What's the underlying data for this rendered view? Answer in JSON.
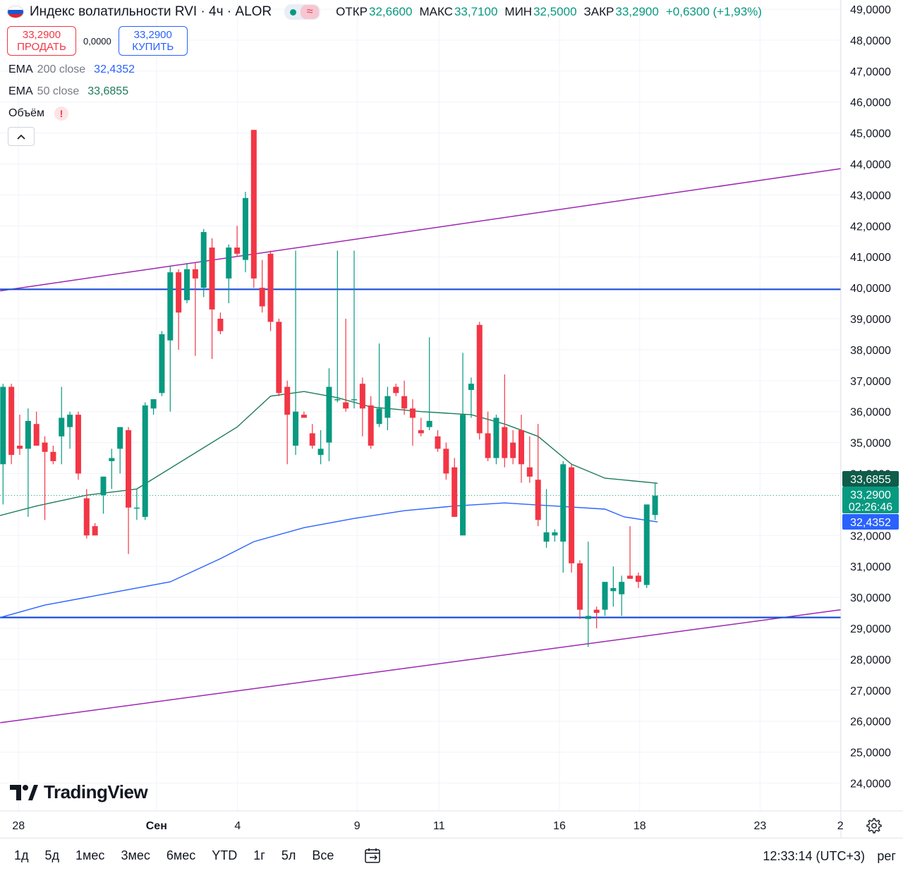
{
  "header": {
    "title": "Индекс волатильности RVI · 4ч · ALOR",
    "status_icon": "wave-icon",
    "ohlc": [
      {
        "label": "ОТКР",
        "value": "32,6600"
      },
      {
        "label": "МАКС",
        "value": "33,7100"
      },
      {
        "label": "МИН",
        "value": "32,5000"
      },
      {
        "label": "ЗАКР",
        "value": "33,2900"
      }
    ],
    "change": "+0,6300 (+1,93%)"
  },
  "trade": {
    "sell_price": "33,2900",
    "sell_label": "ПРОДАТЬ",
    "spread": "0,0000",
    "buy_price": "33,2900",
    "buy_label": "КУПИТЬ"
  },
  "indicators": [
    {
      "name": "EMA",
      "params": "200 close",
      "value": "32,4352",
      "color": "#2962ff"
    },
    {
      "name": "EMA",
      "params": "50 close",
      "value": "33,6855",
      "color": "#1e7a5a"
    },
    {
      "name": "Объём",
      "params": "",
      "value": "",
      "warning": "!"
    }
  ],
  "colors": {
    "up": "#089981",
    "down": "#f23645",
    "ema200": "#2962ff",
    "ema50": "#1e7a5a",
    "channel": "#9c27b0",
    "hline": "#1a4fd6",
    "grid": "#f0f3fa"
  },
  "price_badges": [
    {
      "price": 33.6855,
      "text": "33,6855",
      "bg": "#0e5c4a"
    },
    {
      "price": 33.29,
      "text": "33,2900",
      "sub": "02:26:46",
      "bg": "#089981"
    },
    {
      "price": 32.4352,
      "text": "32,4352",
      "bg": "#2962ff"
    }
  ],
  "chart_data": {
    "type": "candlestick",
    "y_ticks": [
      "49,0000",
      "48,0000",
      "47,0000",
      "46,0000",
      "45,0000",
      "44,0000",
      "43,0000",
      "42,0000",
      "41,0000",
      "40,0000",
      "39,0000",
      "38,0000",
      "37,0000",
      "36,0000",
      "35,0000",
      "34,0000",
      "32,0000",
      "31,0000",
      "30,0000",
      "29,0000",
      "28,0000",
      "27,0000",
      "26,0000",
      "25,0000",
      "24,0000"
    ],
    "y_tick_values": [
      49,
      48,
      47,
      46,
      45,
      44,
      43,
      42,
      41,
      40,
      39,
      38,
      37,
      36,
      35,
      34,
      32,
      31,
      30,
      29,
      28,
      27,
      26,
      25,
      24
    ],
    "x_labels": [
      {
        "text": "28",
        "bar": 0
      },
      {
        "text": "Сен",
        "bar": 16.5
      },
      {
        "text": "4",
        "bar": 26.2
      },
      {
        "text": "9",
        "bar": 40.5
      },
      {
        "text": "11",
        "bar": 50.3
      },
      {
        "text": "16",
        "bar": 64.7
      },
      {
        "text": "18",
        "bar": 74.3
      },
      {
        "text": "23",
        "bar": 88.7
      },
      {
        "text": "2",
        "bar": 98.3
      }
    ],
    "y_range": [
      23.3,
      49.2
    ],
    "horizontal_levels": [
      39.95,
      29.35
    ],
    "channel_lines": [
      {
        "from": [
          0,
          39.9
        ],
        "to": [
          99,
          43.85
        ]
      },
      {
        "from": [
          0,
          25.95
        ],
        "to": [
          99,
          29.6
        ]
      }
    ],
    "candles": [
      {
        "o": 34.3,
        "h": 36.9,
        "l": 33.0,
        "c": 36.8
      },
      {
        "o": 36.8,
        "h": 36.9,
        "l": 34.3,
        "c": 34.6
      },
      {
        "o": 34.9,
        "h": 35.9,
        "l": 34.6,
        "c": 34.8
      },
      {
        "o": 34.8,
        "h": 36.1,
        "l": 32.6,
        "c": 35.7
      },
      {
        "o": 35.6,
        "h": 36.0,
        "l": 34.9,
        "c": 34.9
      },
      {
        "o": 35.0,
        "h": 35.2,
        "l": 32.5,
        "c": 34.7
      },
      {
        "o": 34.7,
        "h": 34.9,
        "l": 34.3,
        "c": 34.4
      },
      {
        "o": 35.2,
        "h": 36.8,
        "l": 34.3,
        "c": 35.8
      },
      {
        "o": 35.5,
        "h": 36.0,
        "l": 34.8,
        "c": 35.9
      },
      {
        "o": 35.9,
        "h": 36.0,
        "l": 33.8,
        "c": 34.0
      },
      {
        "o": 33.2,
        "h": 33.5,
        "l": 31.9,
        "c": 32.0
      },
      {
        "o": 32.3,
        "h": 32.4,
        "l": 32.0,
        "c": 32.0
      },
      {
        "o": 33.3,
        "h": 33.9,
        "l": 32.7,
        "c": 33.9
      },
      {
        "o": 34.4,
        "h": 34.8,
        "l": 33.5,
        "c": 34.5
      },
      {
        "o": 34.8,
        "h": 35.5,
        "l": 34.0,
        "c": 35.5
      },
      {
        "o": 35.4,
        "h": 35.5,
        "l": 31.4,
        "c": 32.9
      },
      {
        "o": 32.9,
        "h": 33.5,
        "l": 32.5,
        "c": 32.9
      },
      {
        "o": 32.6,
        "h": 36.3,
        "l": 32.5,
        "c": 36.2
      },
      {
        "o": 36.1,
        "h": 36.4,
        "l": 35.9,
        "c": 36.4
      },
      {
        "o": 36.6,
        "h": 38.6,
        "l": 36.5,
        "c": 38.5
      },
      {
        "o": 38.3,
        "h": 40.7,
        "l": 36.0,
        "c": 40.5
      },
      {
        "o": 40.5,
        "h": 40.6,
        "l": 38.0,
        "c": 39.2
      },
      {
        "o": 39.6,
        "h": 40.8,
        "l": 39.5,
        "c": 40.6
      },
      {
        "o": 40.6,
        "h": 40.8,
        "l": 37.8,
        "c": 40.3
      },
      {
        "o": 40.0,
        "h": 41.9,
        "l": 39.7,
        "c": 41.8
      },
      {
        "o": 41.3,
        "h": 41.6,
        "l": 37.7,
        "c": 39.3
      },
      {
        "o": 39.0,
        "h": 39.2,
        "l": 38.5,
        "c": 38.6
      },
      {
        "o": 40.3,
        "h": 41.4,
        "l": 39.5,
        "c": 41.3
      },
      {
        "o": 41.3,
        "h": 42.0,
        "l": 41.0,
        "c": 41.1
      },
      {
        "o": 40.9,
        "h": 43.1,
        "l": 40.5,
        "c": 42.9
      },
      {
        "o": 45.1,
        "h": 45.1,
        "l": 40.0,
        "c": 40.3
      },
      {
        "o": 40.0,
        "h": 40.9,
        "l": 39.2,
        "c": 39.4
      },
      {
        "o": 41.1,
        "h": 41.2,
        "l": 38.6,
        "c": 38.9
      },
      {
        "o": 38.9,
        "h": 39.0,
        "l": 36.5,
        "c": 36.6
      },
      {
        "o": 36.8,
        "h": 37.0,
        "l": 34.3,
        "c": 35.9
      },
      {
        "o": 34.9,
        "h": 41.2,
        "l": 34.6,
        "c": 36.0
      },
      {
        "o": 35.9,
        "h": 36.0,
        "l": 35.8,
        "c": 35.8
      },
      {
        "o": 35.3,
        "h": 35.6,
        "l": 34.8,
        "c": 34.9
      },
      {
        "o": 34.6,
        "h": 35.4,
        "l": 34.3,
        "c": 34.8
      },
      {
        "o": 35.0,
        "h": 37.4,
        "l": 34.4,
        "c": 36.8
      },
      {
        "o": 36.4,
        "h": 41.2,
        "l": 36.3,
        "c": 36.4
      },
      {
        "o": 36.3,
        "h": 39.0,
        "l": 36.0,
        "c": 36.1
      },
      {
        "o": 36.4,
        "h": 41.2,
        "l": 36.1,
        "c": 36.4
      },
      {
        "o": 36.9,
        "h": 37.1,
        "l": 35.2,
        "c": 36.1
      },
      {
        "o": 36.2,
        "h": 36.5,
        "l": 34.8,
        "c": 34.9
      },
      {
        "o": 35.6,
        "h": 38.2,
        "l": 35.5,
        "c": 36.1
      },
      {
        "o": 35.8,
        "h": 36.8,
        "l": 35.4,
        "c": 36.5
      },
      {
        "o": 36.8,
        "h": 36.9,
        "l": 36.5,
        "c": 36.6
      },
      {
        "o": 36.5,
        "h": 37.0,
        "l": 35.9,
        "c": 36.1
      },
      {
        "o": 36.1,
        "h": 36.4,
        "l": 34.9,
        "c": 35.8
      },
      {
        "o": 35.4,
        "h": 35.8,
        "l": 35.2,
        "c": 35.3
      },
      {
        "o": 35.5,
        "h": 38.4,
        "l": 35.4,
        "c": 35.7
      },
      {
        "o": 35.2,
        "h": 35.4,
        "l": 34.7,
        "c": 34.8
      },
      {
        "o": 34.8,
        "h": 35.0,
        "l": 33.8,
        "c": 34.0
      },
      {
        "o": 34.2,
        "h": 34.5,
        "l": 32.6,
        "c": 32.6
      },
      {
        "o": 32.0,
        "h": 37.9,
        "l": 32.0,
        "c": 35.9
      },
      {
        "o": 36.7,
        "h": 37.1,
        "l": 35.8,
        "c": 36.9
      },
      {
        "o": 38.8,
        "h": 38.9,
        "l": 35.1,
        "c": 35.3
      },
      {
        "o": 35.3,
        "h": 36.0,
        "l": 34.4,
        "c": 34.5
      },
      {
        "o": 34.5,
        "h": 35.9,
        "l": 34.3,
        "c": 35.8
      },
      {
        "o": 35.5,
        "h": 37.2,
        "l": 34.2,
        "c": 34.5
      },
      {
        "o": 35.0,
        "h": 35.4,
        "l": 34.3,
        "c": 34.5
      },
      {
        "o": 35.4,
        "h": 35.9,
        "l": 33.7,
        "c": 34.3
      },
      {
        "o": 34.2,
        "h": 35.2,
        "l": 33.7,
        "c": 33.9
      },
      {
        "o": 33.8,
        "h": 35.6,
        "l": 32.3,
        "c": 32.5
      },
      {
        "o": 31.8,
        "h": 33.5,
        "l": 31.6,
        "c": 32.1
      },
      {
        "o": 32.0,
        "h": 32.2,
        "l": 31.8,
        "c": 32.1
      },
      {
        "o": 31.8,
        "h": 34.4,
        "l": 30.8,
        "c": 34.3
      },
      {
        "o": 34.2,
        "h": 34.3,
        "l": 30.8,
        "c": 31.1
      },
      {
        "o": 31.1,
        "h": 31.2,
        "l": 29.3,
        "c": 29.6
      },
      {
        "o": 29.3,
        "h": 31.8,
        "l": 28.4,
        "c": 29.4
      },
      {
        "o": 29.6,
        "h": 29.7,
        "l": 29.0,
        "c": 29.5
      },
      {
        "o": 29.6,
        "h": 30.3,
        "l": 29.4,
        "c": 30.5
      },
      {
        "o": 30.2,
        "h": 31.0,
        "l": 29.7,
        "c": 30.3
      },
      {
        "o": 30.1,
        "h": 30.7,
        "l": 29.4,
        "c": 30.5
      },
      {
        "o": 30.7,
        "h": 32.3,
        "l": 30.6,
        "c": 30.6
      },
      {
        "o": 30.7,
        "h": 30.8,
        "l": 30.3,
        "c": 30.5
      },
      {
        "o": 30.4,
        "h": 33.0,
        "l": 30.3,
        "c": 33.0
      },
      {
        "o": 32.66,
        "h": 33.71,
        "l": 32.5,
        "c": 33.29
      }
    ],
    "ema200": [
      [
        -1,
        29.3
      ],
      [
        5,
        29.75
      ],
      [
        12,
        30.1
      ],
      [
        20,
        30.5
      ],
      [
        26,
        31.25
      ],
      [
        30,
        31.8
      ],
      [
        36,
        32.25
      ],
      [
        42,
        32.55
      ],
      [
        48,
        32.8
      ],
      [
        54,
        32.95
      ],
      [
        60,
        33.05
      ],
      [
        66,
        32.95
      ],
      [
        72,
        32.85
      ],
      [
        74.3,
        32.6
      ],
      [
        78.3,
        32.4352
      ]
    ],
    "ema50": [
      [
        -1,
        32.6
      ],
      [
        4,
        32.95
      ],
      [
        10,
        33.3
      ],
      [
        16,
        33.5
      ],
      [
        22,
        34.5
      ],
      [
        28,
        35.5
      ],
      [
        32,
        36.5
      ],
      [
        36,
        36.65
      ],
      [
        40,
        36.45
      ],
      [
        44,
        36.15
      ],
      [
        50,
        36.0
      ],
      [
        56,
        35.9
      ],
      [
        60,
        35.6
      ],
      [
        64,
        35.2
      ],
      [
        68,
        34.3
      ],
      [
        72,
        33.85
      ],
      [
        78.3,
        33.6855
      ]
    ]
  },
  "watermark": {
    "logo_text": "TradingView",
    "icon": "tradingview-logo-icon"
  },
  "bottom_bar": {
    "ranges": [
      "1д",
      "5д",
      "1мес",
      "3мес",
      "6мес",
      "YTD",
      "1г",
      "5л",
      "Все"
    ],
    "calendar_icon": "calendar-range-icon",
    "clock": "12:33:14 (UTC+3)",
    "session": "рег"
  },
  "settings_icon": "gear-icon"
}
